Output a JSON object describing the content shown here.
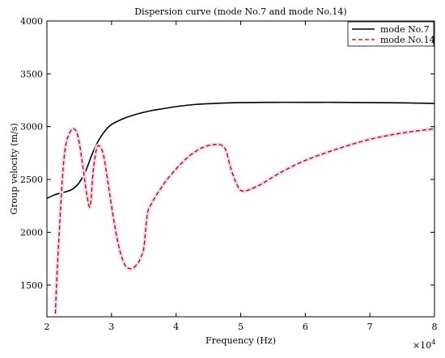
{
  "chart_data": {
    "type": "line",
    "title": "Dispersion curve (mode No.7 and mode No.14)",
    "xlabel": "Frequency (Hz)",
    "ylabel": "Group velocity (m/s)",
    "x_exponent_label": "×10",
    "x_exponent_power": "4",
    "xlim": [
      2,
      8
    ],
    "ylim": [
      1200,
      4000
    ],
    "x_ticks": [
      2,
      3,
      4,
      5,
      6,
      7,
      8
    ],
    "x_tick_labels": [
      "2",
      "3",
      "4",
      "5",
      "6",
      "7",
      "8"
    ],
    "y_ticks": [
      1500,
      2000,
      2500,
      3000,
      3500,
      4000
    ],
    "y_tick_labels": [
      "1500",
      "2000",
      "2500",
      "3000",
      "3500",
      "4000"
    ],
    "grid": false,
    "legend_position": "top-right",
    "series": [
      {
        "name": "mode No.7",
        "style": "solid",
        "color": "#000000",
        "x": [
          2.0,
          2.1,
          2.2,
          2.3,
          2.4,
          2.5,
          2.6,
          2.7,
          2.8,
          2.9,
          3.0,
          3.2,
          3.4,
          3.6,
          3.8,
          4.0,
          4.3,
          4.6,
          5.0,
          5.5,
          6.0,
          6.5,
          7.0,
          7.5,
          8.0
        ],
        "values": [
          2320,
          2350,
          2370,
          2385,
          2410,
          2470,
          2580,
          2740,
          2870,
          2960,
          3020,
          3080,
          3120,
          3150,
          3170,
          3190,
          3210,
          3220,
          3228,
          3230,
          3230,
          3230,
          3228,
          3225,
          3220
        ]
      },
      {
        "name": "mode No.14",
        "style": "dashed",
        "color": "#cc2200",
        "x": [
          2.13,
          2.16,
          2.2,
          2.25,
          2.3,
          2.38,
          2.45,
          2.5,
          2.55,
          2.62,
          2.67,
          2.72,
          2.78,
          2.85,
          2.9,
          3.0,
          3.1,
          3.2,
          3.3,
          3.4,
          3.45,
          3.5,
          3.55,
          3.6,
          3.8,
          4.0,
          4.2,
          4.4,
          4.6,
          4.75,
          4.85,
          4.95,
          5.05,
          5.3,
          5.6,
          6.0,
          6.5,
          7.0,
          7.5,
          8.0
        ],
        "values": [
          1230,
          1650,
          2100,
          2600,
          2850,
          2970,
          2960,
          2850,
          2650,
          2350,
          2250,
          2600,
          2810,
          2780,
          2650,
          2250,
          1900,
          1700,
          1655,
          1700,
          1760,
          1850,
          2150,
          2250,
          2450,
          2600,
          2720,
          2800,
          2830,
          2800,
          2600,
          2440,
          2390,
          2450,
          2560,
          2680,
          2790,
          2880,
          2940,
          2980
        ]
      }
    ]
  }
}
